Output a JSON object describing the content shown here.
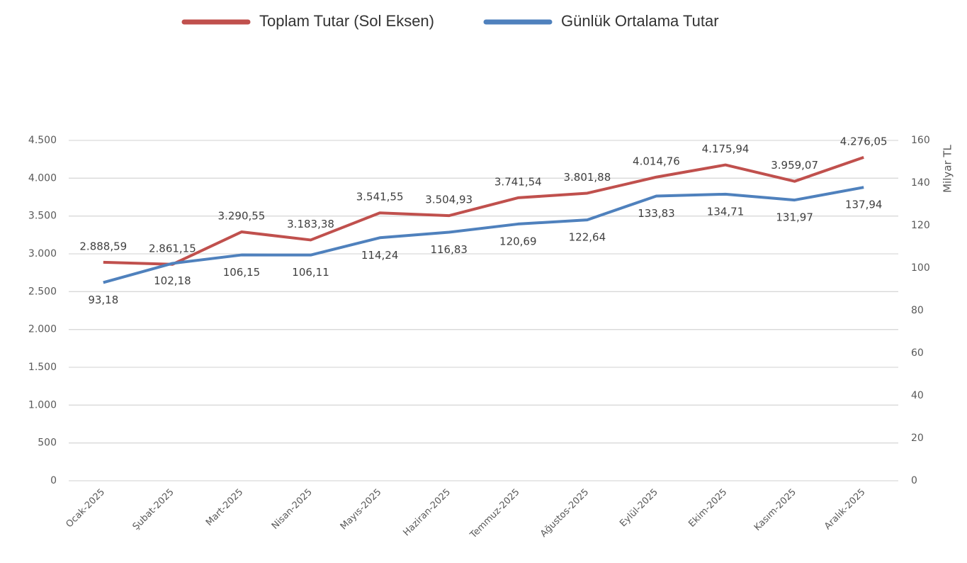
{
  "chart_data": {
    "type": "line",
    "categories": [
      "Ocak-2025",
      "Şubat-2025",
      "Mart-2025",
      "Nisan-2025",
      "Mayıs-2025",
      "Haziran-2025",
      "Temmuz-2025",
      "Ağustos-2025",
      "Eylül-2025",
      "Ekim-2025",
      "Kasım-2025",
      "Aralık-2025"
    ],
    "series": [
      {
        "name": "Toplam Tutar (Sol Eksen)",
        "color": "#c0504d",
        "values": [
          2888.59,
          2861.15,
          3290.55,
          3183.38,
          3541.55,
          3504.93,
          3741.54,
          3801.88,
          4014.76,
          4175.94,
          3959.07,
          4276.05
        ],
        "value_labels": [
          "2.888,59",
          "2.861,15",
          "3.290,55",
          "3.183,38",
          "3.541,55",
          "3.504,93",
          "3.741,54",
          "3.801,88",
          "4.014,76",
          "4.175,94",
          "3.959,07",
          "4.276,05"
        ]
      },
      {
        "name": "Günlük Ortalama Tutar",
        "color": "#4f81bd",
        "axis": "y2",
        "values": [
          93.18,
          102.18,
          106.15,
          106.11,
          114.24,
          116.83,
          120.69,
          122.64,
          133.83,
          134.71,
          131.97,
          137.94
        ],
        "value_labels": [
          "93,18",
          "102,18",
          "106,15",
          "106,11",
          "114,24",
          "116,83",
          "120,69",
          "122,64",
          "133,83",
          "134,71",
          "131,97",
          "137,94"
        ]
      }
    ],
    "ylim": [
      0,
      4500
    ],
    "yticks": [
      0,
      500,
      {
        "value": 1000,
        "label": "1.000"
      },
      {
        "value": 1500,
        "label": "1.500"
      },
      {
        "value": 2000,
        "label": "2.000"
      },
      {
        "value": 2500,
        "label": "2.500"
      },
      {
        "value": 3000,
        "label": "3.000"
      },
      {
        "value": 3500,
        "label": "3.500"
      },
      {
        "value": 4000,
        "label": "4.000"
      },
      {
        "value": 4500,
        "label": "4.500"
      }
    ],
    "y2lim": [
      0,
      160
    ],
    "y2ticks": [
      0,
      20,
      40,
      60,
      80,
      100,
      120,
      140,
      160
    ],
    "y2label": "Milyar TL",
    "grid": true,
    "legend": "top"
  }
}
